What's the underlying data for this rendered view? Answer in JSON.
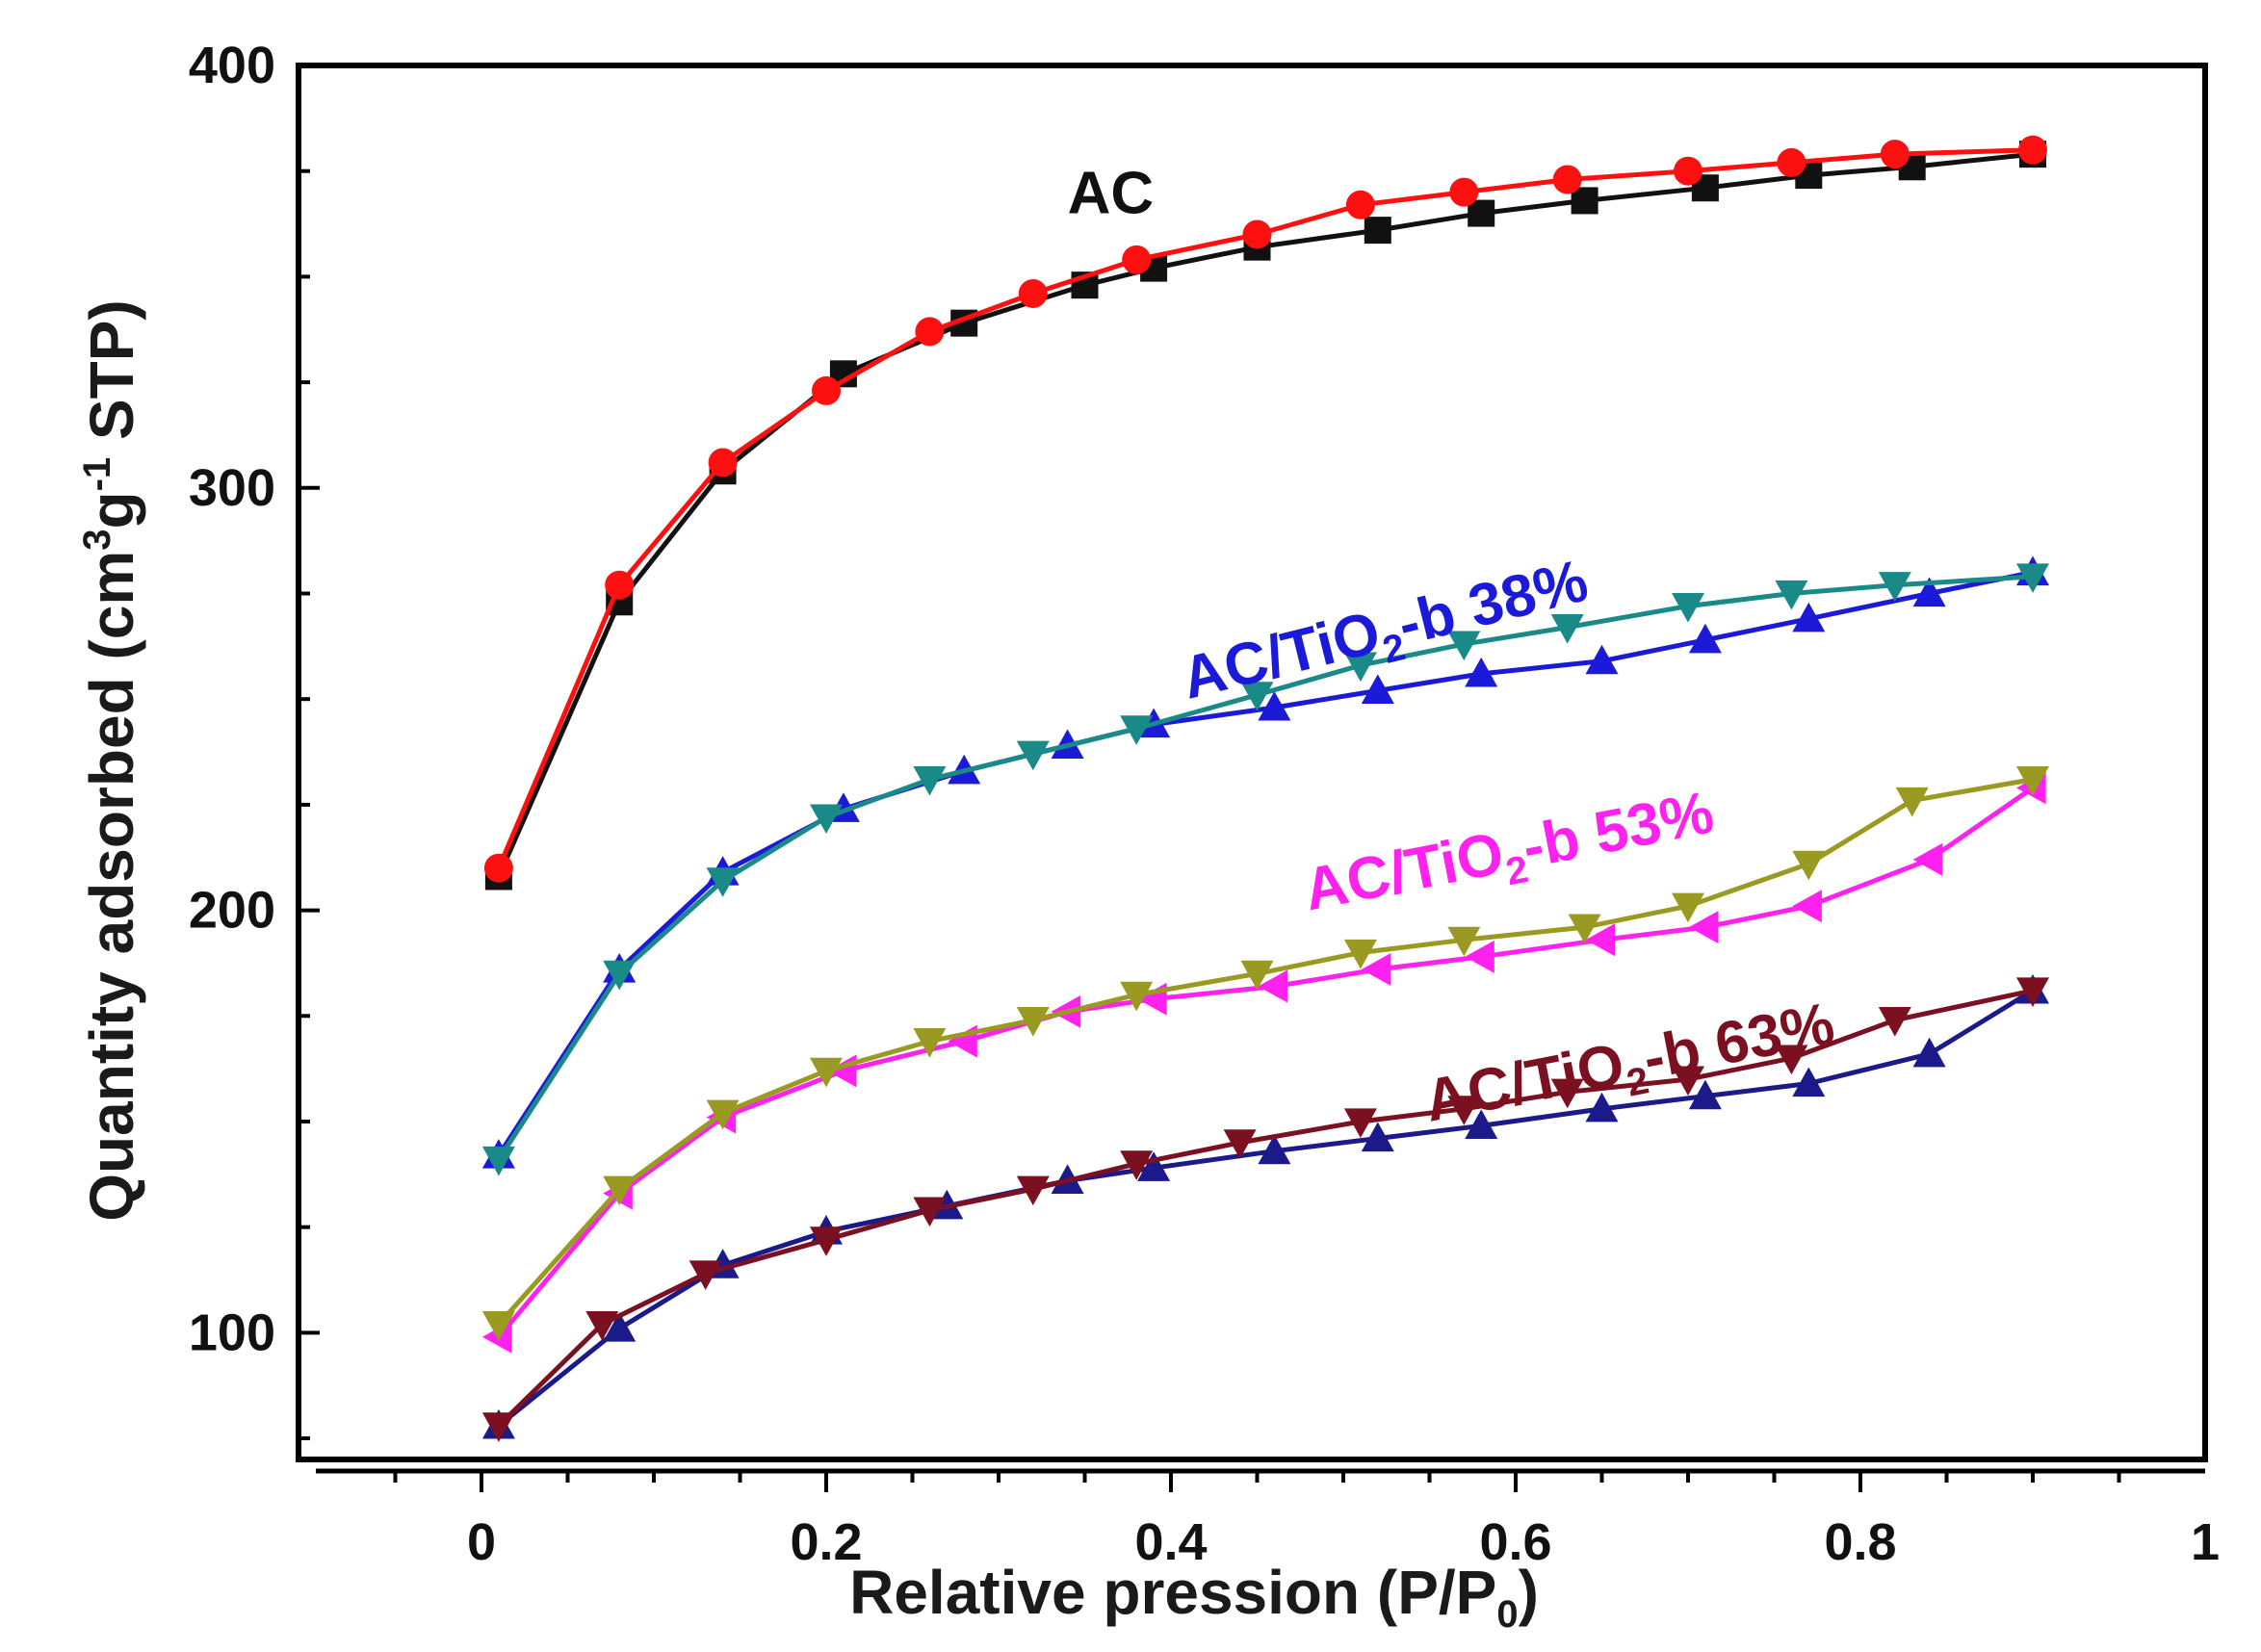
{
  "chart_data": {
    "type": "line",
    "title": "",
    "xlabel": "Relative pression (P/P",
    "xlabel_sub": "0",
    "xlabel_end": ")",
    "ylabel": "Quantity adsorbed (cm",
    "ylabel_sup1": "3",
    "ylabel_mid": "g",
    "ylabel_sup2": "-1",
    "ylabel_end": " STP)",
    "xlim": [
      -0.1,
      1.0
    ],
    "ylim": [
      70,
      400
    ],
    "x_ticks": [
      0,
      0.2,
      0.4,
      0.6,
      0.8,
      1
    ],
    "x_tick_labels": [
      "0",
      "0.2",
      "0.4",
      "0.6",
      "0.8",
      "1"
    ],
    "y_ticks": [
      100,
      200,
      300,
      400
    ],
    "y_tick_labels": [
      "100",
      "200",
      "300",
      "400"
    ],
    "grid": false,
    "legend": "none",
    "series_labels": [
      {
        "main": "AC",
        "sub": "",
        "rest": "",
        "color": "#111111",
        "at": [
          0.34,
          365
        ]
      },
      {
        "main": "AC/TiO",
        "sub": "2",
        "rest": "-b 38%",
        "color": "#1a1ad8",
        "at": [
          0.41,
          250
        ]
      },
      {
        "main": "AC/TiO",
        "sub": "2",
        "rest": "-b 53%",
        "color": "#ff22ee",
        "at": [
          0.48,
          200
        ]
      },
      {
        "main": "AC/TiO",
        "sub": "2",
        "rest": "-b 63%",
        "color": "#7a1020",
        "at": [
          0.55,
          150
        ]
      }
    ],
    "series": [
      {
        "color": "#111111",
        "marker": "square",
        "x": [
          0.01,
          0.08,
          0.14,
          0.21,
          0.28,
          0.35,
          0.39,
          0.45,
          0.52,
          0.58,
          0.64,
          0.71,
          0.77,
          0.83,
          0.9
        ],
        "y": [
          208,
          273,
          304,
          327,
          339,
          348,
          352,
          357,
          361,
          365,
          368,
          371,
          374,
          376,
          379
        ]
      },
      {
        "color": "#ff1010",
        "marker": "circle",
        "x": [
          0.01,
          0.08,
          0.14,
          0.2,
          0.26,
          0.32,
          0.38,
          0.45,
          0.51,
          0.57,
          0.63,
          0.7,
          0.76,
          0.82,
          0.9
        ],
        "y": [
          210,
          277,
          306,
          323,
          337,
          346,
          354,
          360,
          367,
          370,
          373,
          375,
          377,
          379,
          380
        ]
      },
      {
        "color": "#1a1ad8",
        "marker": "triangle-up",
        "x": [
          0.01,
          0.08,
          0.14,
          0.21,
          0.28,
          0.34,
          0.39,
          0.46,
          0.52,
          0.58,
          0.65,
          0.71,
          0.77,
          0.84,
          0.9
        ],
        "y": [
          142,
          186,
          209,
          224,
          233,
          239,
          244,
          248,
          252,
          256,
          259,
          264,
          269,
          275,
          280
        ]
      },
      {
        "color": "#1a8a88",
        "marker": "triangle-down",
        "x": [
          0.01,
          0.08,
          0.14,
          0.2,
          0.26,
          0.32,
          0.38,
          0.45,
          0.51,
          0.57,
          0.63,
          0.7,
          0.76,
          0.82,
          0.9
        ],
        "y": [
          141,
          185,
          207,
          222,
          231,
          237,
          243,
          251,
          258,
          263,
          267,
          272,
          275,
          277,
          279
        ]
      },
      {
        "color": "#ff22ee",
        "marker": "triangle-left",
        "x": [
          0.01,
          0.08,
          0.14,
          0.21,
          0.28,
          0.34,
          0.39,
          0.46,
          0.52,
          0.58,
          0.65,
          0.71,
          0.77,
          0.84,
          0.9
        ],
        "y": [
          99,
          133,
          151,
          162,
          169,
          176,
          179,
          182,
          186,
          189,
          193,
          196,
          201,
          212,
          229
        ]
      },
      {
        "color": "#9a9a22",
        "marker": "triangle-down",
        "x": [
          0.01,
          0.08,
          0.14,
          0.2,
          0.26,
          0.32,
          0.38,
          0.45,
          0.51,
          0.57,
          0.64,
          0.7,
          0.77,
          0.83,
          0.9
        ],
        "y": [
          102,
          134,
          152,
          162,
          169,
          174,
          180,
          185,
          190,
          193,
          196,
          201,
          211,
          226,
          231
        ]
      },
      {
        "color": "#1a1a8a",
        "marker": "triangle-up",
        "x": [
          0.01,
          0.08,
          0.14,
          0.2,
          0.27,
          0.34,
          0.39,
          0.46,
          0.52,
          0.58,
          0.65,
          0.71,
          0.77,
          0.84,
          0.9
        ],
        "y": [
          78,
          101,
          116,
          124,
          130,
          136,
          139,
          143,
          146,
          149,
          153,
          156,
          159,
          166,
          181
        ]
      },
      {
        "color": "#7a1020",
        "marker": "triangle-down",
        "x": [
          0.01,
          0.07,
          0.13,
          0.2,
          0.26,
          0.32,
          0.38,
          0.44,
          0.51,
          0.57,
          0.63,
          0.7,
          0.76,
          0.82,
          0.9
        ],
        "y": [
          78,
          102,
          114,
          122,
          129,
          134,
          140,
          145,
          150,
          153,
          157,
          160,
          165,
          174,
          181
        ]
      }
    ]
  }
}
